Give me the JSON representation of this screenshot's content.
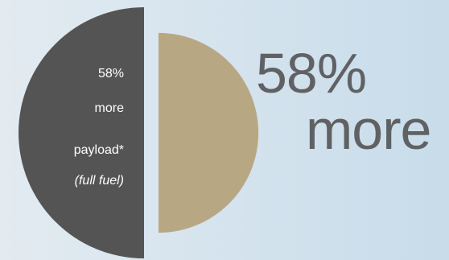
{
  "chart_data": {
    "type": "comparison-semicircles",
    "series": [
      {
        "label_lines": [
          "58%",
          "more",
          "payload*",
          "(full fuel)"
        ],
        "value": 158,
        "color": "#545454"
      },
      {
        "value": 100,
        "color": "#b8a783"
      }
    ]
  },
  "headline": {
    "top": "58%",
    "bottom": "more"
  }
}
